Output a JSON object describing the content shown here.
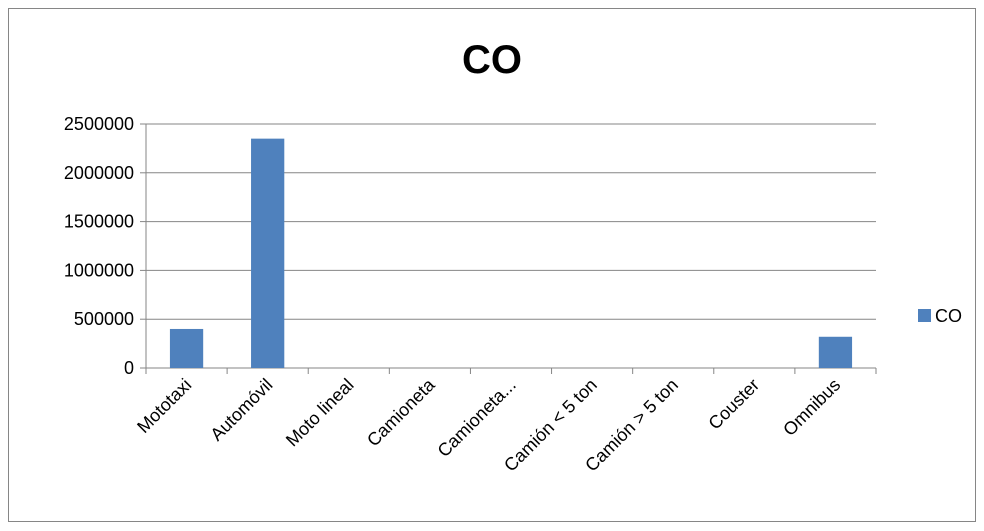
{
  "chart_data": {
    "type": "bar",
    "title": "CO",
    "categories": [
      "Mototaxi",
      "Automóvil",
      "Moto lineal",
      "Camioneta",
      "Camioneta...",
      "Camión < 5 ton",
      "Camión > 5 ton",
      "Couster",
      "Omnibus"
    ],
    "series": [
      {
        "name": "CO",
        "values": [
          400000,
          2350000,
          0,
          0,
          0,
          0,
          0,
          0,
          320000
        ],
        "color": "#4F81BD"
      }
    ],
    "ylim": [
      0,
      2500000
    ],
    "yticks": [
      "0",
      "500000",
      "1000000",
      "1500000",
      "2000000",
      "2500000"
    ],
    "xlabel": "",
    "ylabel": "",
    "grid": true,
    "legend": "right"
  }
}
